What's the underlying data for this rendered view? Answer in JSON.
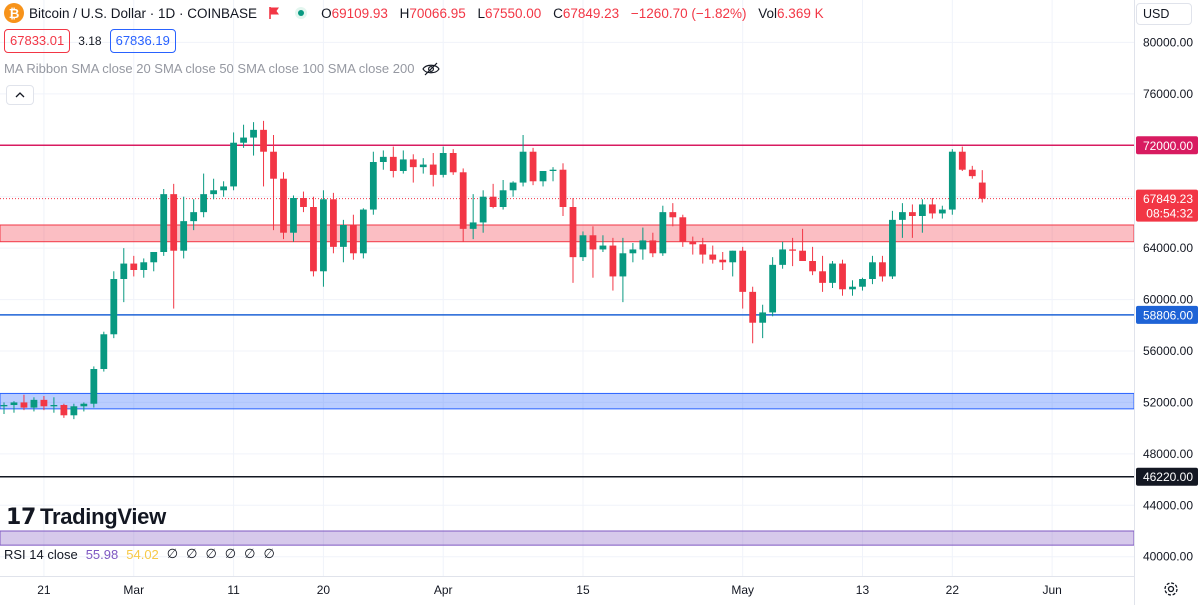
{
  "header": {
    "symbol_icon": "bitcoin-icon",
    "title": "Bitcoin / U.S. Dollar · 1D · COINBASE",
    "open_key": "O",
    "open": "69109.93",
    "high_key": "H",
    "high": "70066.95",
    "low_key": "L",
    "low": "67550.00",
    "close_key": "C",
    "close": "67849.23",
    "change": "−1260.70 (−1.82%)",
    "vol_key": "Vol",
    "vol": "6.369 K",
    "sell_price": "67833.01",
    "spread": "3.18",
    "buy_price": "67836.19",
    "currency": "USD",
    "colors": {
      "up": "#089981",
      "down": "#f23645",
      "accent": "#2962ff"
    }
  },
  "indicators": {
    "ma_ribbon": "MA Ribbon SMA close 20 SMA close 50 SMA close 100 SMA close 200",
    "rsi_label": "RSI 14 close",
    "rsi_value": "55.98",
    "rsi_ma": "54.02",
    "rsi_zeros": [
      "∅",
      "∅",
      "∅",
      "∅",
      "∅",
      "∅"
    ]
  },
  "logo": {
    "text": "TradingView"
  },
  "chart_data": {
    "type": "candlestick",
    "ylim": [
      38500,
      83300
    ],
    "y_ticks": [
      40000,
      44000,
      48000,
      52000,
      56000,
      60000,
      64000,
      68000,
      72000,
      76000,
      80000
    ],
    "y_tick_labels": [
      "40000.00",
      "44000.00",
      "48000.00",
      "52000.00",
      "56000.00",
      "60000.00",
      "64000.00",
      "68000.00",
      "72000.00",
      "76000.00",
      "80000.00"
    ],
    "x_labels": [
      {
        "label": "21",
        "index": 4
      },
      {
        "label": "Mar",
        "index": 13
      },
      {
        "label": "11",
        "index": 23
      },
      {
        "label": "20",
        "index": 32
      },
      {
        "label": "Apr",
        "index": 44
      },
      {
        "label": "15",
        "index": 58
      },
      {
        "label": "May",
        "index": 74
      },
      {
        "label": "13",
        "index": 86
      },
      {
        "label": "22",
        "index": 95
      },
      {
        "label": "Jun",
        "index": 105
      }
    ],
    "x_range": [
      -0.4,
      113.2
    ],
    "candles": [
      [
        51700,
        52000,
        51100,
        51800
      ],
      [
        51800,
        52100,
        51200,
        52000
      ],
      [
        52000,
        52600,
        51400,
        51600
      ],
      [
        51600,
        52400,
        51300,
        52200
      ],
      [
        52200,
        52500,
        51400,
        51700
      ],
      [
        51700,
        52400,
        51200,
        51800
      ],
      [
        51800,
        51900,
        50800,
        51000
      ],
      [
        51000,
        51900,
        50700,
        51700
      ],
      [
        51700,
        52000,
        51300,
        51900
      ],
      [
        51900,
        54800,
        51600,
        54600
      ],
      [
        54600,
        57500,
        54400,
        57300
      ],
      [
        57300,
        62200,
        57000,
        61600
      ],
      [
        61600,
        64000,
        59800,
        62800
      ],
      [
        62800,
        63400,
        61800,
        62300
      ],
      [
        62300,
        63200,
        61700,
        62900
      ],
      [
        62900,
        63600,
        62200,
        63700
      ],
      [
        63700,
        68600,
        63400,
        68200
      ],
      [
        68200,
        69000,
        59300,
        63800
      ],
      [
        63800,
        68000,
        63200,
        66100
      ],
      [
        66100,
        67800,
        65400,
        66800
      ],
      [
        66800,
        69800,
        66400,
        68200
      ],
      [
        68200,
        69400,
        67800,
        68500
      ],
      [
        68500,
        69200,
        68000,
        68800
      ],
      [
        68800,
        73000,
        68500,
        72200
      ],
      [
        72200,
        73600,
        71800,
        72600
      ],
      [
        72600,
        73800,
        71200,
        73200
      ],
      [
        73200,
        73900,
        68800,
        71500
      ],
      [
        71500,
        72800,
        65400,
        69400
      ],
      [
        69400,
        69900,
        64700,
        65200
      ],
      [
        65200,
        68100,
        64500,
        67900
      ],
      [
        67900,
        68400,
        66800,
        67200
      ],
      [
        67200,
        68000,
        61800,
        62200
      ],
      [
        62200,
        68500,
        61000,
        67800
      ],
      [
        67800,
        68300,
        63600,
        64100
      ],
      [
        64100,
        66200,
        62900,
        65800
      ],
      [
        65800,
        66600,
        63100,
        63600
      ],
      [
        63600,
        67100,
        63200,
        67000
      ],
      [
        67000,
        71500,
        66600,
        70700
      ],
      [
        70700,
        71600,
        70100,
        71100
      ],
      [
        71100,
        71900,
        69500,
        70000
      ],
      [
        70000,
        71600,
        69800,
        70900
      ],
      [
        70900,
        71300,
        69100,
        70300
      ],
      [
        70300,
        71000,
        69800,
        70500
      ],
      [
        70500,
        71400,
        68800,
        69700
      ],
      [
        69700,
        71900,
        69500,
        71400
      ],
      [
        71400,
        71700,
        69700,
        69900
      ],
      [
        69900,
        70200,
        64500,
        65500
      ],
      [
        65500,
        68200,
        64700,
        66000
      ],
      [
        66000,
        68500,
        65200,
        68000
      ],
      [
        68000,
        69000,
        67100,
        67200
      ],
      [
        67200,
        69300,
        67000,
        68500
      ],
      [
        68500,
        69200,
        68000,
        69100
      ],
      [
        69100,
        72800,
        68800,
        71500
      ],
      [
        71500,
        71800,
        68900,
        69200
      ],
      [
        69200,
        70000,
        68800,
        70000
      ],
      [
        70000,
        70300,
        69200,
        70100
      ],
      [
        70100,
        70600,
        66500,
        67200
      ],
      [
        67200,
        67900,
        61300,
        63300
      ],
      [
        63300,
        65300,
        63000,
        65000
      ],
      [
        65000,
        65700,
        61700,
        63900
      ],
      [
        63900,
        65000,
        63700,
        64200
      ],
      [
        64200,
        64800,
        60700,
        61800
      ],
      [
        61800,
        64800,
        59800,
        63600
      ],
      [
        63600,
        64400,
        62900,
        63900
      ],
      [
        63900,
        65600,
        63100,
        64600
      ],
      [
        64600,
        65200,
        63300,
        63600
      ],
      [
        63600,
        67300,
        63400,
        66800
      ],
      [
        66800,
        67500,
        65700,
        66400
      ],
      [
        66400,
        66600,
        64100,
        64500
      ],
      [
        64500,
        64900,
        63500,
        64300
      ],
      [
        64300,
        64800,
        62800,
        63500
      ],
      [
        63500,
        64200,
        62800,
        63100
      ],
      [
        63100,
        63700,
        62300,
        62900
      ],
      [
        62900,
        63800,
        61800,
        63800
      ],
      [
        63800,
        64100,
        59300,
        60600
      ],
      [
        60600,
        61000,
        56600,
        58200
      ],
      [
        58200,
        59600,
        57000,
        59000
      ],
      [
        59000,
        63300,
        58700,
        62700
      ],
      [
        62700,
        64500,
        62400,
        63900
      ],
      [
        63900,
        64800,
        62600,
        63800
      ],
      [
        63800,
        65500,
        63300,
        63000
      ],
      [
        63000,
        64100,
        61900,
        62200
      ],
      [
        62200,
        63400,
        60600,
        61300
      ],
      [
        61300,
        63000,
        60900,
        62800
      ],
      [
        62800,
        63100,
        60300,
        60800
      ],
      [
        60800,
        61500,
        60300,
        61000
      ],
      [
        61000,
        61700,
        60700,
        61600
      ],
      [
        61600,
        63400,
        61200,
        62900
      ],
      [
        62900,
        63400,
        61400,
        61800
      ],
      [
        61800,
        66900,
        61600,
        66200
      ],
      [
        66200,
        67500,
        64800,
        66800
      ],
      [
        66800,
        67400,
        64800,
        66500
      ],
      [
        66500,
        67800,
        65200,
        67400
      ],
      [
        67400,
        67900,
        66300,
        66700
      ],
      [
        66700,
        67300,
        66300,
        67000
      ],
      [
        67000,
        71700,
        66600,
        71500
      ],
      [
        71500,
        71900,
        70000,
        70100
      ],
      [
        70100,
        70400,
        69400,
        69600
      ],
      [
        69100,
        70067,
        67550,
        67849
      ]
    ],
    "zones": [
      {
        "low": 64500,
        "high": 65800,
        "color": "#f23645"
      },
      {
        "low": 51500,
        "high": 52700,
        "color": "#2962ff"
      },
      {
        "low": 40900,
        "high": 42000,
        "color": "#7e57c2"
      }
    ],
    "levels": [
      {
        "value": 72000,
        "label": "72000.00",
        "color": "#d81b60"
      },
      {
        "value": 58806,
        "label": "58806.00",
        "color": "#1e63d6"
      },
      {
        "value": 46220,
        "label": "46220.00",
        "color": "#131722"
      }
    ],
    "last_price": {
      "value": 67849.23,
      "label": "67849.23",
      "countdown": "08:54:32",
      "color": "#f23645"
    }
  }
}
